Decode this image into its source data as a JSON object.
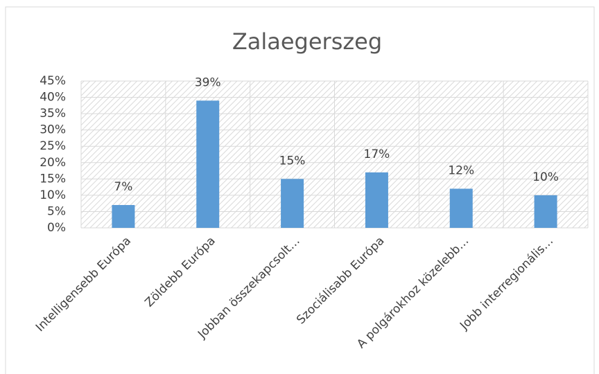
{
  "chart_data": {
    "type": "bar",
    "title": "Zalaegerszeg",
    "categories": [
      "Intelligensebb Európa",
      "Zöldebb Európa",
      "Jobban összekapcsolt…",
      "Szociálisabb Európa",
      "A polgárokhoz közelebb…",
      "Jobb interregionális…"
    ],
    "values": [
      7,
      39,
      15,
      17,
      12,
      10
    ],
    "value_labels": [
      "7%",
      "39%",
      "15%",
      "17%",
      "12%",
      "10%"
    ],
    "color": "#5b9bd5",
    "ylim": [
      0,
      45
    ],
    "yticks": [
      {
        "value": 0,
        "label": "0%"
      },
      {
        "value": 5,
        "label": "5%"
      },
      {
        "value": 10,
        "label": "10%"
      },
      {
        "value": 15,
        "label": "15%"
      },
      {
        "value": 20,
        "label": "20%"
      },
      {
        "value": 25,
        "label": "25%"
      },
      {
        "value": 30,
        "label": "30%"
      },
      {
        "value": 35,
        "label": "35%"
      },
      {
        "value": 40,
        "label": "40%"
      },
      {
        "value": 45,
        "label": "45%"
      }
    ],
    "grid": true
  }
}
